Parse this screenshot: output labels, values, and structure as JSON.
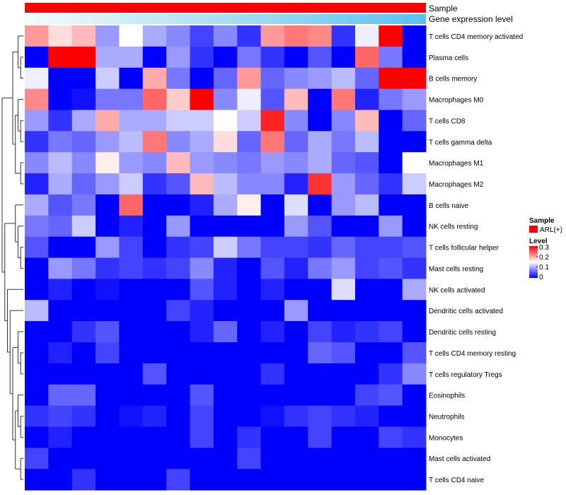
{
  "chart_data": {
    "type": "heatmap",
    "title": "",
    "annotation_tracks": [
      {
        "name": "Sample",
        "type": "categorical",
        "color": "#ff0000"
      },
      {
        "name": "Gene expression level",
        "type": "gradient",
        "color_low": "#f7fbfd",
        "color_high": "#5bc0ef"
      }
    ],
    "rows": [
      "T cells CD4 memory activated",
      "Plasma cells",
      "B cells memory",
      "Macrophages M0",
      "T cells CD8",
      "T cells gamma delta",
      "Macrophages M1",
      "Macrophages M2",
      "B cells naive",
      "NK cells resting",
      "T cells follicular helper",
      "Mast cells resting",
      "NK cells activated",
      "Dendritic cells activated",
      "Dendritic cells resting",
      "T cells CD4 memory resting",
      "T cells regulatory  Tregs",
      "Eosinophils",
      "Neutrophils",
      "Monocytes",
      "Mast cells activated",
      "T cells CD4 naive"
    ],
    "n_columns": 17,
    "values": [
      [
        0.21,
        0.17,
        0.19,
        0.09,
        0.15,
        0.1,
        0.08,
        0.04,
        0.08,
        0.03,
        0.21,
        0.23,
        0.22,
        0.03,
        0.14,
        0.3,
        0.0
      ],
      [
        0.0,
        0.3,
        0.3,
        0.1,
        0.1,
        0.0,
        0.09,
        0.03,
        0.0,
        0.07,
        0.03,
        0.0,
        0.05,
        0.0,
        0.24,
        0.07,
        0.0
      ],
      [
        0.14,
        0.0,
        0.0,
        0.12,
        0.0,
        0.2,
        0.07,
        0.0,
        0.06,
        0.21,
        0.06,
        0.08,
        0.09,
        0.11,
        0.06,
        0.3,
        0.3
      ],
      [
        0.22,
        0.0,
        0.01,
        0.07,
        0.07,
        0.24,
        0.18,
        0.3,
        0.08,
        0.14,
        0.05,
        0.19,
        0.0,
        0.23,
        0.02,
        0.07,
        0.09
      ],
      [
        0.09,
        0.03,
        0.1,
        0.2,
        0.1,
        0.1,
        0.12,
        0.12,
        0.15,
        0.12,
        0.28,
        0.08,
        0.0,
        0.08,
        0.19,
        0.0,
        0.06
      ],
      [
        0.03,
        0.07,
        0.06,
        0.09,
        0.11,
        0.23,
        0.08,
        0.1,
        0.17,
        0.06,
        0.23,
        0.06,
        0.1,
        0.07,
        0.11,
        0.0,
        0.0
      ],
      [
        0.08,
        0.11,
        0.08,
        0.16,
        0.09,
        0.08,
        0.19,
        0.09,
        0.08,
        0.07,
        0.09,
        0.08,
        0.1,
        0.06,
        0.05,
        0.0,
        0.15
      ],
      [
        0.02,
        0.1,
        0.06,
        0.09,
        0.12,
        0.03,
        0.05,
        0.19,
        0.11,
        0.08,
        0.08,
        0.02,
        0.27,
        0.09,
        0.06,
        0.03,
        0.12
      ],
      [
        0.1,
        0.05,
        0.07,
        0.0,
        0.24,
        0.0,
        0.0,
        0.02,
        0.1,
        0.16,
        0.0,
        0.13,
        0.0,
        0.09,
        0.11,
        0.0,
        0.0
      ],
      [
        0.07,
        0.06,
        0.12,
        0.0,
        0.02,
        0.0,
        0.09,
        0.0,
        0.0,
        0.0,
        0.0,
        0.09,
        0.05,
        0.0,
        0.0,
        0.09,
        0.0
      ],
      [
        0.05,
        0.0,
        0.0,
        0.09,
        0.04,
        0.0,
        0.03,
        0.04,
        0.12,
        0.07,
        0.04,
        0.04,
        0.03,
        0.06,
        0.04,
        0.04,
        0.05
      ],
      [
        0.0,
        0.09,
        0.07,
        0.03,
        0.04,
        0.03,
        0.04,
        0.08,
        0.02,
        0.0,
        0.05,
        0.02,
        0.07,
        0.09,
        0.04,
        0.05,
        0.03
      ],
      [
        0.0,
        0.02,
        0.0,
        0.01,
        0.0,
        0.0,
        0.0,
        0.05,
        0.02,
        0.0,
        0.02,
        0.0,
        0.0,
        0.13,
        0.0,
        0.0,
        0.1
      ],
      [
        0.11,
        0.0,
        0.0,
        0.0,
        0.0,
        0.0,
        0.04,
        0.02,
        0.0,
        0.0,
        0.0,
        0.09,
        0.0,
        0.0,
        0.0,
        0.0,
        0.0
      ],
      [
        0.0,
        0.0,
        0.03,
        0.05,
        0.0,
        0.0,
        0.0,
        0.02,
        0.06,
        0.0,
        0.02,
        0.0,
        0.04,
        0.02,
        0.03,
        0.04,
        0.0
      ],
      [
        0.0,
        0.02,
        0.0,
        0.04,
        0.0,
        0.0,
        0.0,
        0.0,
        0.0,
        0.0,
        0.0,
        0.0,
        0.06,
        0.05,
        0.0,
        0.0,
        0.05
      ],
      [
        0.0,
        0.0,
        0.0,
        0.0,
        0.0,
        0.05,
        0.0,
        0.0,
        0.0,
        0.0,
        0.03,
        0.0,
        0.0,
        0.0,
        0.0,
        0.03,
        0.08
      ],
      [
        0.0,
        0.06,
        0.06,
        0.0,
        0.0,
        0.0,
        0.0,
        0.05,
        0.0,
        0.0,
        0.0,
        0.0,
        0.0,
        0.0,
        0.04,
        0.05,
        0.0
      ],
      [
        0.03,
        0.04,
        0.03,
        0.0,
        0.01,
        0.02,
        0.0,
        0.04,
        0.0,
        0.0,
        0.01,
        0.03,
        0.04,
        0.03,
        0.02,
        0.0,
        0.0
      ],
      [
        0.0,
        0.02,
        0.0,
        0.0,
        0.0,
        0.0,
        0.0,
        0.04,
        0.0,
        0.03,
        0.0,
        0.0,
        0.04,
        0.0,
        0.0,
        0.04,
        0.03
      ],
      [
        0.04,
        0.0,
        0.0,
        0.0,
        0.0,
        0.0,
        0.0,
        0.0,
        0.0,
        0.04,
        0.0,
        0.0,
        0.0,
        0.0,
        0.0,
        0.0,
        0.0
      ],
      [
        0.0,
        0.0,
        0.03,
        0.0,
        0.0,
        0.0,
        0.04,
        0.0,
        0.0,
        0.0,
        0.0,
        0.0,
        0.0,
        0.0,
        0.0,
        0.0,
        0.0
      ]
    ],
    "color_scale": {
      "min": 0,
      "mid": 0.15,
      "max": 0.3,
      "low_color": "#0000ff",
      "mid_color": "#ffffff",
      "high_color": "#ff0000"
    },
    "legend": {
      "placement": "right",
      "sample_title": "Sample",
      "sample_entries": [
        "ARL(+)"
      ],
      "level_title": "Level",
      "level_ticks": [
        "0.3",
        "0.2",
        "0.1",
        "0"
      ]
    },
    "dendrogram": "rows"
  }
}
